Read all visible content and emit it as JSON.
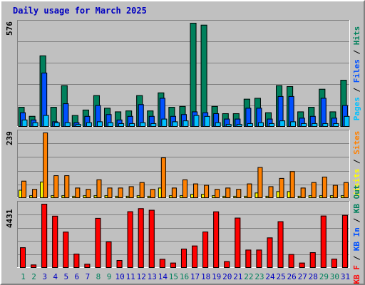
{
  "title": "Daily usage for March 2025",
  "colors": {
    "pages": "#00c0ff",
    "files": "#0050ff",
    "hits": "#00805c",
    "visits": "#ffff00",
    "sites": "#ff8000",
    "kbf": "#ff0000",
    "frame_bg": "#c0c0c0",
    "weekend_label": "#00805c",
    "weekday_label": "#0000c0"
  },
  "chart_data": [
    {
      "type": "bar",
      "panel": "top",
      "title": "",
      "ymax_label": "576",
      "ylim": [
        0,
        576
      ],
      "grid": true,
      "legend": [
        {
          "text": "Pages",
          "color": "#00c0ff"
        },
        {
          "text": "Files",
          "color": "#0050ff"
        },
        {
          "text": "Hits",
          "color": "#00805c"
        }
      ],
      "categories": [
        "1",
        "2",
        "3",
        "4",
        "5",
        "6",
        "7",
        "8",
        "9",
        "10",
        "11",
        "12",
        "13",
        "14",
        "15",
        "16",
        "17",
        "18",
        "19",
        "20",
        "21",
        "22",
        "23",
        "24",
        "25",
        "26",
        "27",
        "28",
        "29",
        "30",
        "31"
      ],
      "series": [
        {
          "name": "Hits",
          "values": [
            110,
            60,
            395,
            110,
            230,
            65,
            95,
            175,
            105,
            85,
            90,
            175,
            90,
            190,
            110,
            115,
            576,
            565,
            115,
            75,
            75,
            155,
            160,
            80,
            230,
            225,
            85,
            110,
            210,
            85,
            260
          ]
        },
        {
          "name": "Files",
          "values": [
            80,
            40,
            300,
            30,
            130,
            25,
            60,
            120,
            70,
            40,
            60,
            125,
            60,
            160,
            60,
            70,
            85,
            80,
            75,
            45,
            45,
            105,
            105,
            45,
            170,
            170,
            50,
            60,
            160,
            50,
            120
          ]
        },
        {
          "name": "Pages",
          "values": [
            40,
            25,
            65,
            25,
            25,
            15,
            25,
            30,
            25,
            20,
            20,
            25,
            20,
            45,
            30,
            35,
            65,
            60,
            25,
            15,
            15,
            20,
            25,
            20,
            35,
            30,
            20,
            20,
            20,
            20,
            60
          ]
        }
      ]
    },
    {
      "type": "bar",
      "panel": "middle",
      "title": "",
      "ymax_label": "239",
      "ylim": [
        0,
        239
      ],
      "grid": true,
      "legend": [
        {
          "text": "Visits",
          "color": "#ffff00"
        },
        {
          "text": "Sites",
          "color": "#ff8000"
        }
      ],
      "categories": [
        "1",
        "2",
        "3",
        "4",
        "5",
        "6",
        "7",
        "8",
        "9",
        "10",
        "11",
        "12",
        "13",
        "14",
        "15",
        "16",
        "17",
        "18",
        "19",
        "20",
        "21",
        "22",
        "23",
        "24",
        "25",
        "26",
        "27",
        "28",
        "29",
        "30",
        "31"
      ],
      "series": [
        {
          "name": "Sites",
          "values": [
            63,
            33,
            239,
            83,
            83,
            38,
            33,
            68,
            38,
            38,
            43,
            58,
            33,
            148,
            38,
            68,
            53,
            48,
            33,
            38,
            33,
            53,
            113,
            43,
            73,
            98,
            38,
            58,
            78,
            48,
            58
          ]
        },
        {
          "name": "Visits",
          "values": [
            30,
            10,
            60,
            10,
            10,
            8,
            10,
            10,
            10,
            8,
            8,
            10,
            8,
            38,
            10,
            10,
            15,
            15,
            10,
            8,
            8,
            8,
            20,
            8,
            25,
            25,
            8,
            10,
            10,
            10,
            10
          ]
        }
      ]
    },
    {
      "type": "bar",
      "panel": "bottom",
      "title": "",
      "ymax_label": "4431",
      "ylim": [
        0,
        4431
      ],
      "grid": true,
      "legend": [
        {
          "text": "KB F",
          "color": "#ff0000"
        },
        {
          "text": "KB In",
          "color": "#0050ff"
        },
        {
          "text": "KB Out",
          "color": "#00805c"
        }
      ],
      "categories": [
        "1",
        "2",
        "3",
        "4",
        "5",
        "6",
        "7",
        "8",
        "9",
        "10",
        "11",
        "12",
        "13",
        "14",
        "15",
        "16",
        "17",
        "18",
        "19",
        "20",
        "21",
        "22",
        "23",
        "24",
        "25",
        "26",
        "27",
        "28",
        "29",
        "30",
        "31"
      ],
      "series": [
        {
          "name": "KB F",
          "values": [
            1420,
            230,
            4431,
            3600,
            2500,
            980,
            280,
            3450,
            1820,
            540,
            3910,
            4120,
            4010,
            620,
            360,
            1330,
            1540,
            2510,
            3900,
            460,
            3470,
            1260,
            1260,
            2100,
            3220,
            950,
            360,
            1080,
            3610,
            630,
            3660
          ]
        }
      ]
    }
  ],
  "x_labels": [
    "1",
    "2",
    "3",
    "4",
    "5",
    "6",
    "7",
    "8",
    "9",
    "10",
    "11",
    "12",
    "13",
    "14",
    "15",
    "16",
    "17",
    "18",
    "19",
    "20",
    "21",
    "22",
    "23",
    "24",
    "25",
    "26",
    "27",
    "28",
    "29",
    "30",
    "31"
  ],
  "weekend_days": [
    1,
    2,
    8,
    9,
    15,
    16,
    22,
    23,
    29,
    30
  ]
}
